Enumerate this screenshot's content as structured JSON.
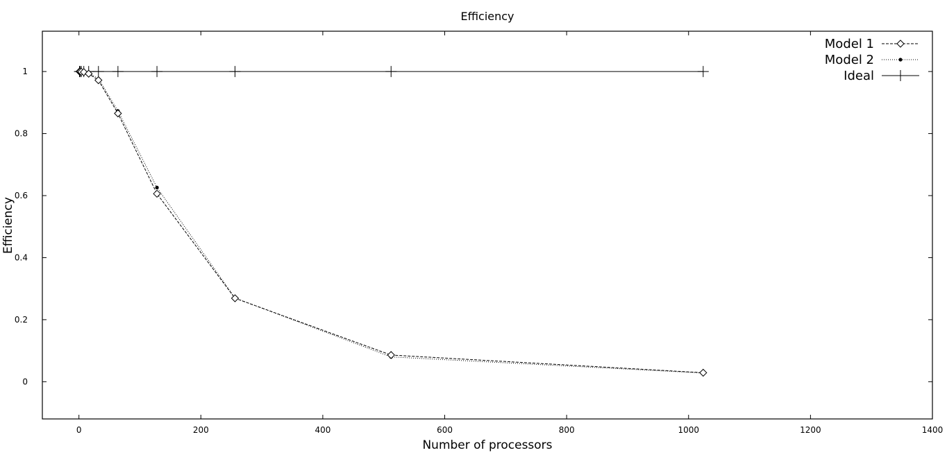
{
  "chart_data": {
    "type": "line",
    "title": "Efficiency",
    "xlabel": "Number of processors",
    "ylabel": "Efficiency",
    "xlim": [
      -60,
      1400
    ],
    "ylim": [
      -0.12,
      1.13
    ],
    "x_ticks": [
      0,
      200,
      400,
      600,
      800,
      1000,
      1200,
      1400
    ],
    "y_ticks": [
      0,
      0.2,
      0.4,
      0.6,
      0.8,
      1
    ],
    "x_tick_labels": [
      "0",
      "200",
      "400",
      "600",
      "800",
      "1000",
      "1200",
      "1400"
    ],
    "y_tick_labels": [
      "0",
      "0.2",
      "0.4",
      "0.6",
      "0.8",
      "1"
    ],
    "grid": false,
    "legend_position": "top-right",
    "series": [
      {
        "name": "Model 1",
        "marker": "diamond-open",
        "line_style": "dashed",
        "color": "#000000",
        "x": [
          1,
          2,
          4,
          8,
          16,
          32,
          64,
          128,
          256,
          512,
          1024
        ],
        "y": [
          1.0,
          1.0,
          0.999,
          0.998,
          0.993,
          0.972,
          0.865,
          0.606,
          0.269,
          0.086,
          0.029
        ]
      },
      {
        "name": "Model 2",
        "marker": "dot-filled",
        "line_style": "dotted",
        "color": "#000000",
        "x": [
          1,
          2,
          4,
          8,
          16,
          32,
          64,
          128,
          256,
          512,
          1024
        ],
        "y": [
          1.0,
          1.0,
          1.0,
          0.999,
          0.995,
          0.977,
          0.873,
          0.626,
          0.27,
          0.08,
          0.028
        ]
      },
      {
        "name": "Ideal",
        "marker": "plus",
        "line_style": "solid",
        "color": "#000000",
        "x": [
          1,
          2,
          4,
          8,
          16,
          32,
          64,
          128,
          256,
          512,
          1024
        ],
        "y": [
          1,
          1,
          1,
          1,
          1,
          1,
          1,
          1,
          1,
          1,
          1
        ]
      }
    ]
  }
}
